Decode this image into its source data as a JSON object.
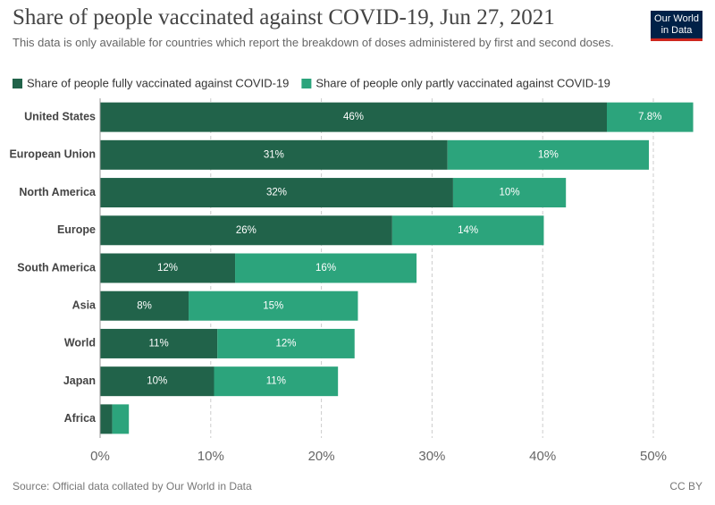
{
  "chart_data": {
    "type": "stacked_barh",
    "title": "Share of people vaccinated against COVID-19, Jun 27, 2021",
    "subtitle": "This data is only available for countries which report the breakdown of doses administered by first and second doses.",
    "logo": [
      "Our World",
      "in Data"
    ],
    "source": "Source: Official data collated by Our World in Data",
    "license": "CC BY",
    "categories": [
      "United States",
      "European Union",
      "North America",
      "Europe",
      "South America",
      "Asia",
      "World",
      "Japan",
      "Africa"
    ],
    "series": [
      {
        "name": "Share of people fully vaccinated against COVID-19",
        "color": "#21634a",
        "values": [
          45.8,
          31.4,
          31.9,
          26.4,
          12.2,
          8.0,
          10.6,
          10.3,
          1.1
        ],
        "value_labels": [
          "46%",
          "31%",
          "32%",
          "26%",
          "12%",
          "8%",
          "11%",
          "10%",
          null
        ]
      },
      {
        "name": "Share of people only partly vaccinated against COVID-19",
        "color": "#2ca47c",
        "values": [
          7.8,
          18.2,
          10.2,
          13.7,
          16.4,
          15.3,
          12.4,
          11.2,
          1.5
        ],
        "value_labels": [
          "7.8%",
          "18%",
          "10%",
          "14%",
          "16%",
          "15%",
          "12%",
          "11%",
          null
        ]
      }
    ],
    "xlim": [
      0,
      53.8
    ],
    "xticks": [
      {
        "value": 0,
        "label": "0%"
      },
      {
        "value": 10,
        "label": "10%"
      },
      {
        "value": 20,
        "label": "20%"
      },
      {
        "value": 30,
        "label": "30%"
      },
      {
        "value": 40,
        "label": "40%"
      },
      {
        "value": 50,
        "label": "50%"
      }
    ],
    "grid": true,
    "legend": "top"
  }
}
